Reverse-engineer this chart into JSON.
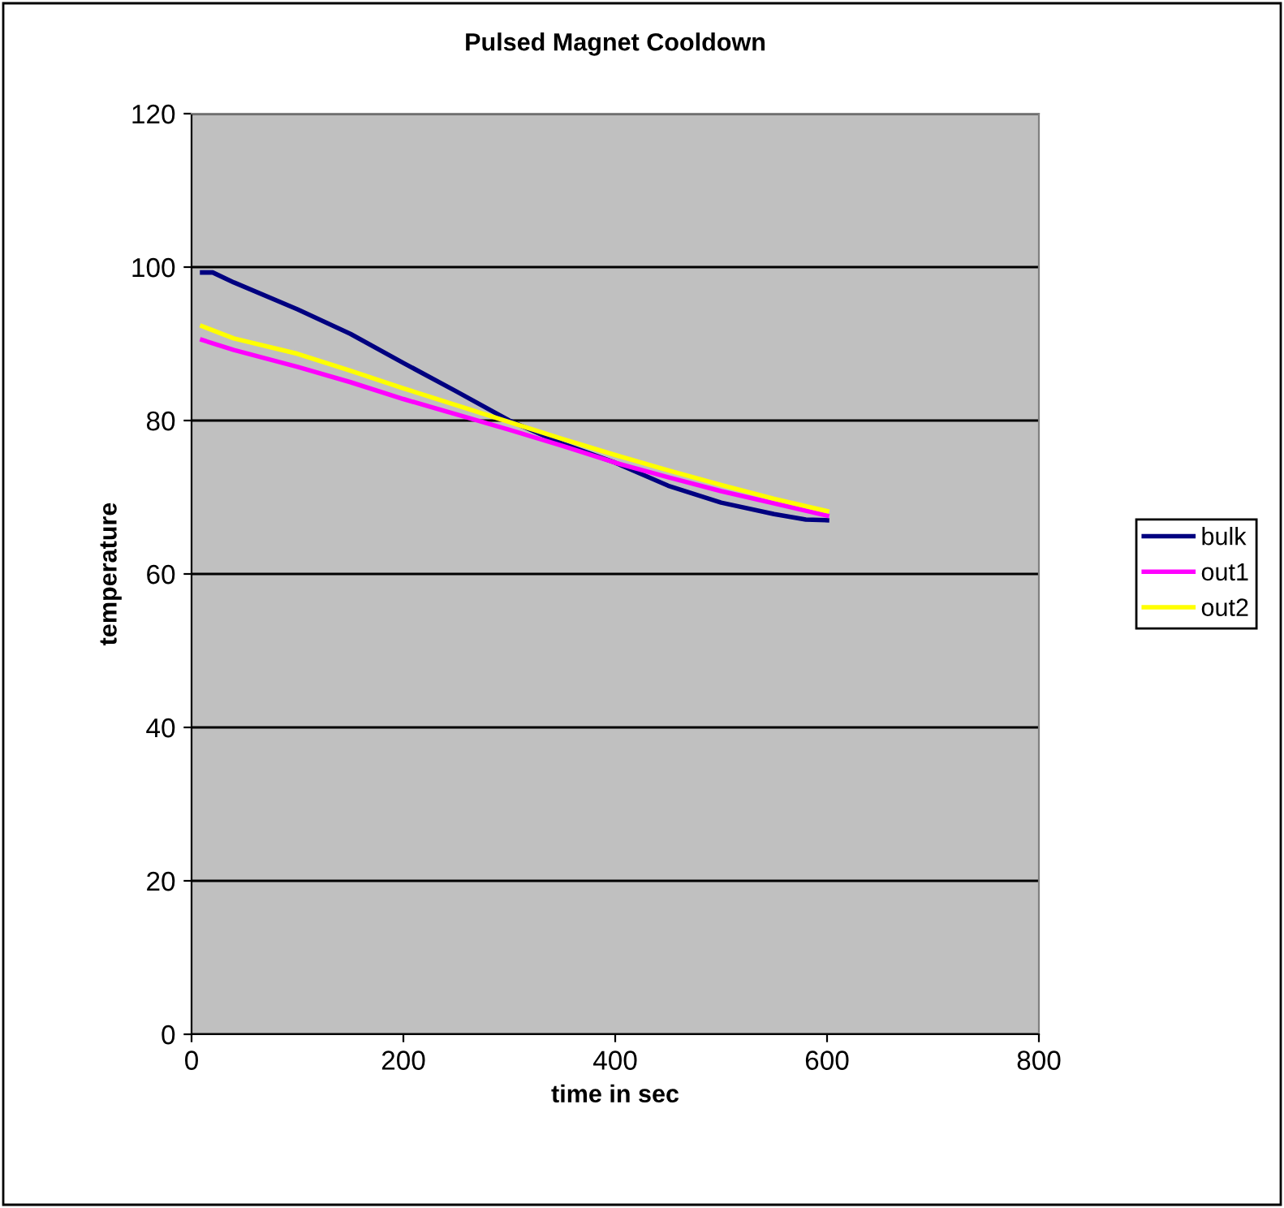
{
  "chart_data": {
    "type": "line",
    "title": "Pulsed Magnet Cooldown",
    "xlabel": "time in sec",
    "ylabel": "temperature",
    "xlim": [
      0,
      800
    ],
    "xticks": [
      0,
      200,
      400,
      600,
      800
    ],
    "ylim": [
      0,
      120
    ],
    "yticks": [
      0,
      20,
      40,
      60,
      80,
      100,
      120
    ],
    "grid": "y",
    "legend": "right",
    "marker": "none",
    "series": [
      {
        "name": "bulk",
        "color": "#000080",
        "x": [
          10,
          20,
          40,
          100,
          150,
          200,
          250,
          300,
          350,
          400,
          450,
          500,
          550,
          580,
          600
        ],
        "values": [
          99.3,
          99.3,
          98,
          94.5,
          91.3,
          87.5,
          83.8,
          80,
          77,
          74.5,
          71.5,
          69.3,
          67.8,
          67.1,
          67
        ]
      },
      {
        "name": "out1",
        "color": "#ff00ff",
        "x": [
          10,
          40,
          100,
          150,
          200,
          250,
          300,
          350,
          400,
          450,
          500,
          550,
          600
        ],
        "values": [
          90.5,
          89.2,
          87,
          85,
          82.8,
          80.8,
          78.8,
          76.7,
          74.5,
          72.6,
          70.8,
          69.2,
          67.6
        ]
      },
      {
        "name": "out2",
        "color": "#ffff00",
        "x": [
          10,
          40,
          100,
          150,
          200,
          250,
          300,
          350,
          400,
          450,
          500,
          550,
          600
        ],
        "values": [
          92.3,
          90.7,
          88.7,
          86.5,
          84.2,
          82,
          79.8,
          77.6,
          75.5,
          73.5,
          71.6,
          69.8,
          68.2
        ]
      }
    ]
  }
}
